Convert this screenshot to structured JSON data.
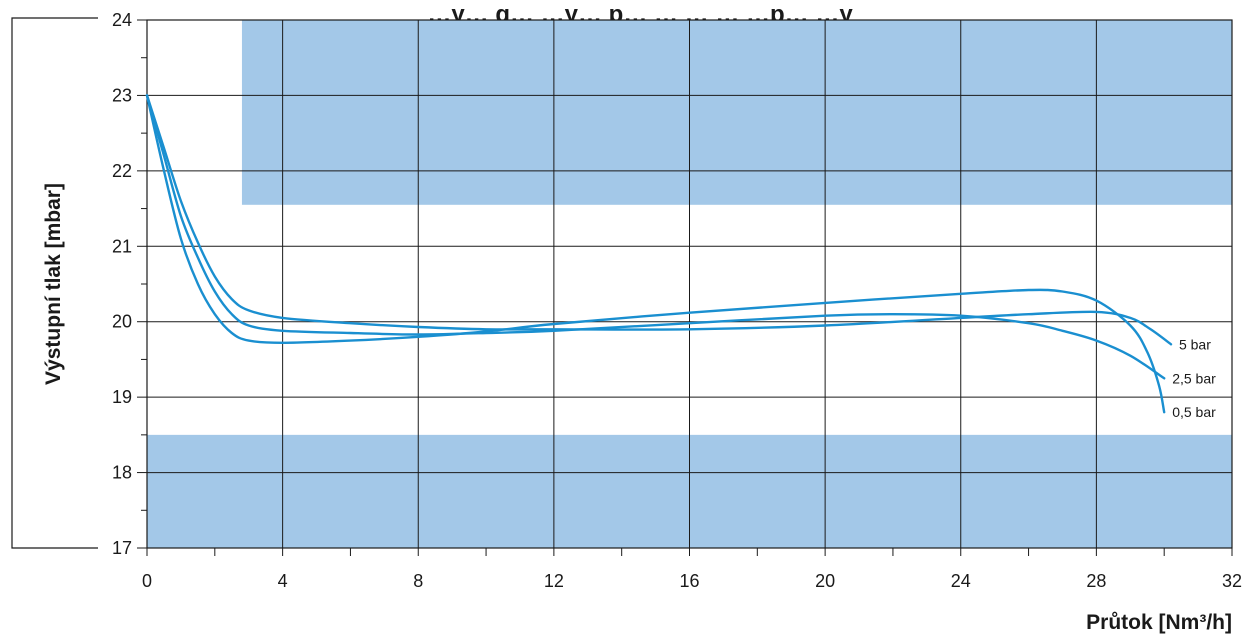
{
  "chart_data": {
    "type": "line",
    "title": "…y… g… …y… p… … … … …p… …y",
    "xlabel": "Průtok [Nm³/h]",
    "ylabel": "Výstupní tlak [mbar]",
    "xlim": [
      0,
      32
    ],
    "ylim": [
      17,
      24
    ],
    "x_ticks": [
      0,
      4,
      8,
      12,
      16,
      20,
      24,
      28,
      32
    ],
    "y_ticks": [
      17,
      18,
      19,
      20,
      21,
      22,
      23,
      24
    ],
    "grid": true,
    "line_color": "#1a8fd0",
    "band_color": "#a3c8e8",
    "shaded_regions": [
      {
        "x_from": 2.8,
        "x_to": 32,
        "y_from": 21.55,
        "y_to": 24
      },
      {
        "x_from": 0,
        "x_to": 32,
        "y_from": 17,
        "y_to": 18.5
      }
    ],
    "series": [
      {
        "name": "5 bar",
        "points": [
          [
            0,
            23.0
          ],
          [
            0.5,
            22.3
          ],
          [
            1,
            21.6
          ],
          [
            1.5,
            21.05
          ],
          [
            2,
            20.6
          ],
          [
            2.5,
            20.3
          ],
          [
            3,
            20.15
          ],
          [
            4,
            20.05
          ],
          [
            6,
            19.98
          ],
          [
            8,
            19.93
          ],
          [
            10,
            19.9
          ],
          [
            12,
            19.9
          ],
          [
            16,
            19.9
          ],
          [
            20,
            19.95
          ],
          [
            24,
            20.05
          ],
          [
            26,
            20.1
          ],
          [
            28,
            20.13
          ],
          [
            29,
            20.05
          ],
          [
            29.6,
            19.9
          ],
          [
            30.2,
            19.7
          ]
        ]
      },
      {
        "name": "2,5 bar",
        "points": [
          [
            0,
            23.0
          ],
          [
            0.5,
            22.2
          ],
          [
            1,
            21.4
          ],
          [
            1.5,
            20.85
          ],
          [
            2,
            20.4
          ],
          [
            2.5,
            20.1
          ],
          [
            3,
            19.95
          ],
          [
            4,
            19.88
          ],
          [
            6,
            19.85
          ],
          [
            8,
            19.83
          ],
          [
            10,
            19.85
          ],
          [
            12,
            19.88
          ],
          [
            16,
            19.98
          ],
          [
            20,
            20.08
          ],
          [
            22,
            20.1
          ],
          [
            24,
            20.08
          ],
          [
            26,
            19.98
          ],
          [
            27,
            19.88
          ],
          [
            28,
            19.75
          ],
          [
            29,
            19.55
          ],
          [
            30,
            19.25
          ]
        ]
      },
      {
        "name": "0,5 bar",
        "points": [
          [
            0,
            23.0
          ],
          [
            0.5,
            22.0
          ],
          [
            1,
            21.1
          ],
          [
            1.5,
            20.5
          ],
          [
            2,
            20.1
          ],
          [
            2.5,
            19.85
          ],
          [
            3,
            19.75
          ],
          [
            4,
            19.72
          ],
          [
            6,
            19.75
          ],
          [
            8,
            19.8
          ],
          [
            10,
            19.87
          ],
          [
            12,
            19.97
          ],
          [
            16,
            20.12
          ],
          [
            20,
            20.25
          ],
          [
            24,
            20.37
          ],
          [
            26,
            20.42
          ],
          [
            27,
            20.4
          ],
          [
            28,
            20.28
          ],
          [
            29,
            19.95
          ],
          [
            29.5,
            19.6
          ],
          [
            29.85,
            19.15
          ],
          [
            30,
            18.8
          ]
        ]
      }
    ]
  }
}
